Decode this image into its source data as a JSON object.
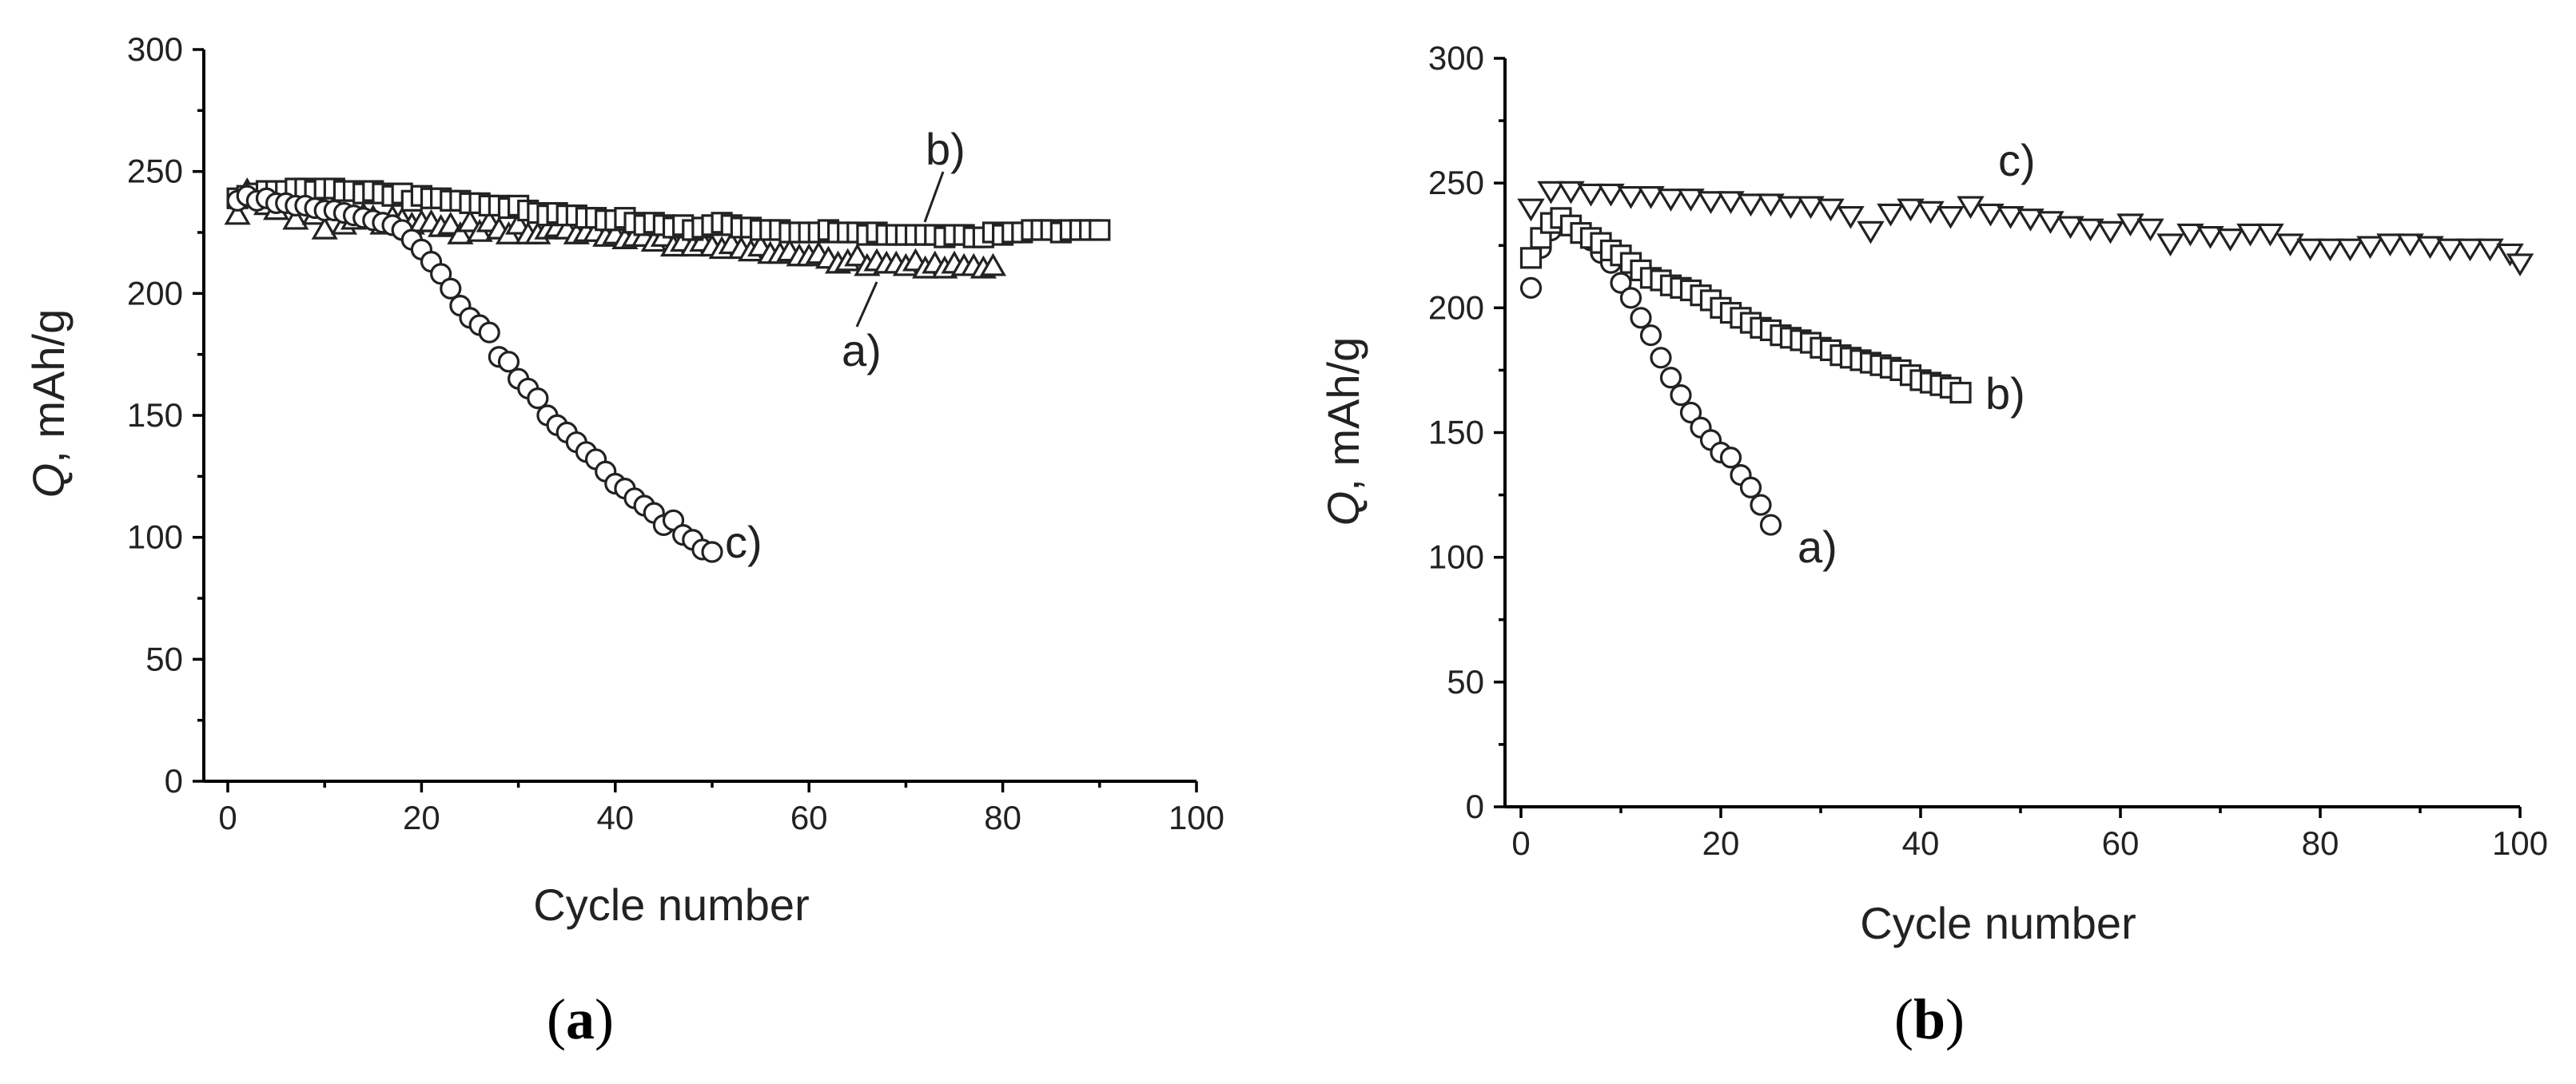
{
  "chart_data": [
    {
      "panel": "a",
      "panel_label": "(a)",
      "type": "scatter",
      "xlabel": "Cycle number",
      "ylabel": "Q, mAh/g",
      "ylabel_italic_part": "Q",
      "ylabel_rest": ", mAh/g",
      "xlim": [
        0,
        100
      ],
      "ylim": [
        0,
        300
      ],
      "xticks": [
        0,
        20,
        40,
        60,
        80,
        100
      ],
      "yticks": [
        0,
        50,
        100,
        150,
        200,
        250,
        300
      ],
      "series": [
        {
          "name": "a)",
          "marker": "triangle-up",
          "x": [
            1,
            2,
            3,
            4,
            5,
            6,
            7,
            8,
            9,
            10,
            11,
            12,
            13,
            14,
            15,
            16,
            17,
            18,
            19,
            20,
            21,
            22,
            23,
            24,
            25,
            26,
            27,
            28,
            29,
            30,
            31,
            32,
            33,
            34,
            35,
            36,
            37,
            38,
            39,
            40,
            41,
            42,
            43,
            44,
            45,
            46,
            47,
            48,
            49,
            50,
            51,
            52,
            53,
            54,
            55,
            56,
            57,
            58,
            59,
            60,
            61,
            62,
            63,
            64,
            65,
            66,
            67,
            68,
            69,
            70,
            71,
            72,
            73,
            74,
            75,
            76,
            77,
            78,
            79
          ],
          "y": [
            232,
            242,
            240,
            236,
            234,
            238,
            230,
            236,
            232,
            226,
            235,
            228,
            230,
            232,
            231,
            228,
            231,
            230,
            228,
            229,
            229,
            227,
            228,
            224,
            229,
            225,
            229,
            226,
            224,
            228,
            224,
            224,
            226,
            227,
            226,
            224,
            225,
            225,
            223,
            224,
            222,
            223,
            223,
            221,
            223,
            219,
            221,
            219,
            221,
            219,
            218,
            220,
            218,
            217,
            219,
            216,
            216,
            217,
            215,
            215,
            216,
            214,
            212,
            213,
            215,
            211,
            213,
            212,
            212,
            211,
            213,
            210,
            212,
            210,
            212,
            211,
            211,
            210,
            211
          ]
        },
        {
          "name": "b)",
          "marker": "square",
          "x": [
            1,
            2,
            3,
            4,
            5,
            6,
            7,
            8,
            9,
            10,
            11,
            12,
            13,
            14,
            15,
            16,
            17,
            18,
            19,
            20,
            21,
            22,
            23,
            24,
            25,
            26,
            27,
            28,
            29,
            30,
            31,
            32,
            33,
            34,
            35,
            36,
            37,
            38,
            39,
            40,
            41,
            42,
            43,
            44,
            45,
            46,
            47,
            48,
            49,
            50,
            51,
            52,
            53,
            54,
            55,
            56,
            57,
            58,
            59,
            60,
            61,
            62,
            63,
            64,
            65,
            66,
            67,
            68,
            69,
            70,
            71,
            72,
            73,
            74,
            75,
            76,
            77,
            78,
            79,
            80,
            81,
            82,
            83,
            84,
            85,
            86,
            87,
            88,
            89,
            90
          ],
          "y": [
            239,
            240,
            241,
            242,
            242,
            242,
            243,
            243,
            242,
            243,
            243,
            242,
            242,
            241,
            242,
            241,
            240,
            241,
            238,
            240,
            239,
            239,
            238,
            238,
            237,
            237,
            236,
            236,
            235,
            236,
            234,
            233,
            232,
            233,
            232,
            232,
            231,
            231,
            230,
            230,
            231,
            229,
            228,
            229,
            228,
            227,
            228,
            226,
            227,
            228,
            229,
            228,
            227,
            227,
            226,
            226,
            226,
            225,
            225,
            225,
            225,
            226,
            225,
            225,
            225,
            224,
            225,
            224,
            224,
            224,
            224,
            224,
            224,
            223,
            224,
            224,
            223,
            223,
            225,
            224,
            225,
            225,
            226,
            226,
            226,
            225,
            226,
            226,
            226,
            226
          ]
        },
        {
          "name": "c)",
          "marker": "circle",
          "x": [
            1,
            2,
            3,
            4,
            5,
            6,
            7,
            8,
            9,
            10,
            11,
            12,
            13,
            14,
            15,
            16,
            17,
            18,
            19,
            20,
            21,
            22,
            23,
            24,
            25,
            26,
            27,
            28,
            29,
            30,
            31,
            32,
            33,
            34,
            35,
            36,
            37,
            38,
            39,
            40,
            41,
            42,
            43,
            44,
            45,
            46,
            47,
            48,
            49,
            50
          ],
          "y": [
            238,
            240,
            238,
            239,
            237,
            237,
            236,
            236,
            235,
            234,
            234,
            233,
            232,
            231,
            230,
            229,
            228,
            226,
            222,
            218,
            213,
            208,
            202,
            195,
            190,
            187,
            184,
            174,
            172,
            165,
            161,
            157,
            150,
            146,
            143,
            139,
            135,
            132,
            127,
            122,
            120,
            116,
            113,
            110,
            105,
            107,
            101,
            99,
            95,
            94
          ]
        }
      ],
      "annotations": [
        {
          "text": "a)",
          "series": "a)"
        },
        {
          "text": "b)",
          "series": "b)"
        },
        {
          "text": "c)",
          "series": "c)"
        }
      ]
    },
    {
      "panel": "b",
      "panel_label": "(b)",
      "type": "scatter",
      "xlabel": "Cycle number",
      "ylabel": "Q, mAh/g",
      "ylabel_italic_part": "Q",
      "ylabel_rest": ", mAh/g",
      "xlim": [
        0,
        100
      ],
      "ylim": [
        0,
        300
      ],
      "xticks": [
        0,
        20,
        40,
        60,
        80,
        100
      ],
      "yticks": [
        0,
        50,
        100,
        150,
        200,
        250,
        300
      ],
      "series": [
        {
          "name": "a)",
          "marker": "circle",
          "x": [
            1,
            2,
            3,
            4,
            5,
            6,
            7,
            8,
            9,
            10,
            11,
            12,
            13,
            14,
            15,
            16,
            17,
            18,
            19,
            20,
            21,
            22,
            23,
            24,
            25
          ],
          "y": [
            208,
            224,
            231,
            235,
            233,
            230,
            227,
            222,
            218,
            210,
            204,
            196,
            189,
            180,
            172,
            165,
            158,
            152,
            147,
            142,
            140,
            133,
            128,
            121,
            113
          ]
        },
        {
          "name": "b)",
          "marker": "square",
          "x": [
            1,
            2,
            3,
            4,
            5,
            6,
            7,
            8,
            9,
            10,
            11,
            12,
            13,
            14,
            15,
            16,
            17,
            18,
            19,
            20,
            21,
            22,
            23,
            24,
            25,
            26,
            27,
            28,
            29,
            30,
            31,
            32,
            33,
            34,
            35,
            36,
            37,
            38,
            39,
            40,
            41,
            42,
            43,
            44
          ],
          "y": [
            220,
            228,
            234,
            236,
            233,
            230,
            228,
            226,
            223,
            221,
            218,
            215,
            212,
            211,
            209,
            208,
            207,
            205,
            203,
            200,
            198,
            196,
            194,
            192,
            191,
            189,
            188,
            187,
            186,
            184,
            183,
            181,
            180,
            179,
            178,
            177,
            176,
            175,
            173,
            171,
            170,
            169,
            168,
            166
          ]
        },
        {
          "name": "c)",
          "marker": "triangle-down",
          "x": [
            1,
            3,
            5,
            7,
            9,
            11,
            13,
            15,
            17,
            19,
            21,
            23,
            25,
            27,
            29,
            31,
            33,
            35,
            37,
            39,
            41,
            43,
            45,
            47,
            49,
            51,
            53,
            55,
            57,
            59,
            61,
            63,
            65,
            67,
            69,
            71,
            73,
            75,
            77,
            79,
            81,
            83,
            85,
            87,
            89,
            91,
            93,
            95,
            97,
            99,
            100
          ],
          "y": [
            240,
            247,
            247,
            246,
            246,
            245,
            245,
            244,
            244,
            243,
            243,
            242,
            242,
            241,
            241,
            240,
            237,
            231,
            238,
            240,
            239,
            237,
            241,
            238,
            237,
            236,
            235,
            233,
            232,
            231,
            234,
            232,
            226,
            230,
            229,
            228,
            230,
            230,
            226,
            224,
            224,
            224,
            225,
            226,
            226,
            225,
            224,
            224,
            224,
            222,
            218
          ]
        }
      ],
      "annotations": [
        {
          "text": "a)",
          "series": "a)"
        },
        {
          "text": "b)",
          "series": "b)"
        },
        {
          "text": "c)",
          "series": "c)"
        }
      ]
    }
  ]
}
